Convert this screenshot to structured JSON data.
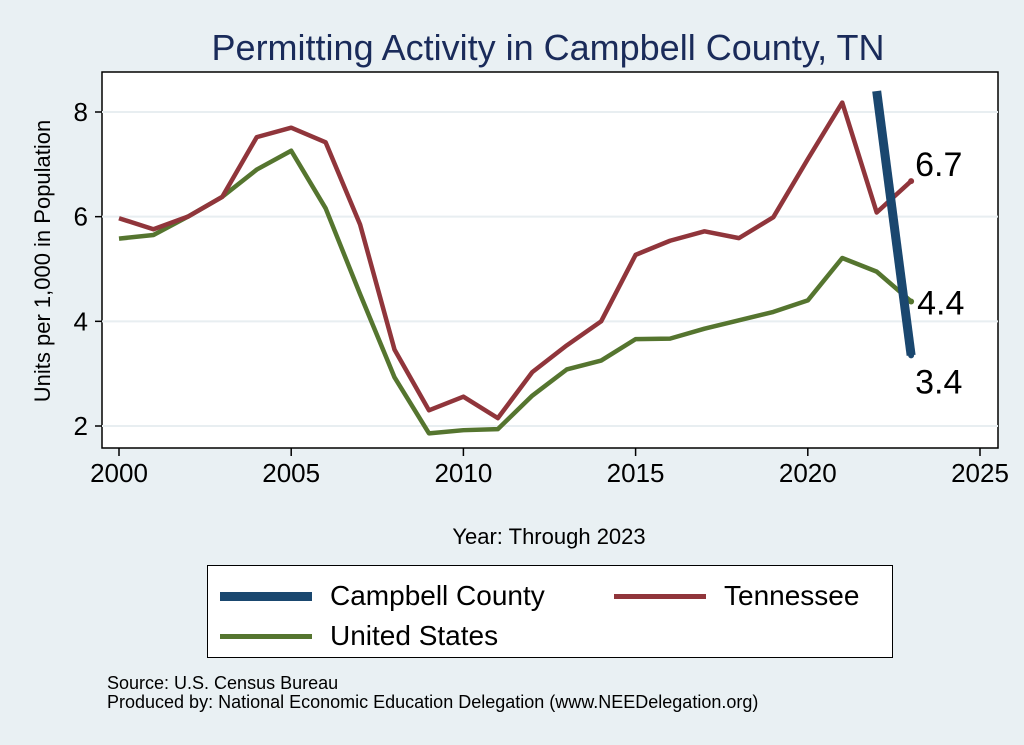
{
  "chart_data": {
    "type": "line",
    "title": "Permitting Activity in Campbell County, TN",
    "xlabel": "Year: Through 2023",
    "ylabel": "Units per 1,000 in Population",
    "xlim": [
      2000,
      2025
    ],
    "ylim": [
      1.7,
      8.8
    ],
    "xticks": [
      2000,
      2005,
      2010,
      2015,
      2020,
      2025
    ],
    "yticks": [
      2,
      4,
      6,
      8
    ],
    "grid": true,
    "legend_position": "bottom",
    "series": [
      {
        "name": "Campbell County",
        "color": "#1a476f",
        "x": [
          2022,
          2023
        ],
        "y": [
          8.4,
          3.35
        ],
        "end_label": "3.4"
      },
      {
        "name": "Tennessee",
        "color": "#90353b",
        "x": [
          2000,
          2001,
          2002,
          2003,
          2004,
          2005,
          2006,
          2007,
          2008,
          2009,
          2010,
          2011,
          2012,
          2013,
          2014,
          2015,
          2016,
          2017,
          2018,
          2019,
          2020,
          2021,
          2022,
          2023
        ],
        "y": [
          5.97,
          5.76,
          6.0,
          6.38,
          7.52,
          7.7,
          7.42,
          5.85,
          3.46,
          2.3,
          2.56,
          2.15,
          3.03,
          3.54,
          4.0,
          5.27,
          5.54,
          5.72,
          5.59,
          5.99,
          7.1,
          8.18,
          6.08,
          6.68
        ],
        "end_label": "6.7"
      },
      {
        "name": "United States",
        "color": "#55752f",
        "x": [
          2000,
          2001,
          2002,
          2003,
          2004,
          2005,
          2006,
          2007,
          2008,
          2009,
          2010,
          2011,
          2012,
          2013,
          2014,
          2015,
          2016,
          2017,
          2018,
          2019,
          2020,
          2021,
          2022,
          2023
        ],
        "y": [
          5.58,
          5.65,
          6.0,
          6.38,
          6.9,
          7.26,
          6.16,
          4.52,
          2.93,
          1.86,
          1.92,
          1.94,
          2.58,
          3.08,
          3.25,
          3.66,
          3.67,
          3.86,
          4.02,
          4.18,
          4.4,
          5.21,
          4.95,
          4.38
        ],
        "end_label": "4.4"
      }
    ]
  },
  "legend": {
    "items": [
      "Campbell County",
      "Tennessee",
      "United States"
    ]
  },
  "footer": {
    "source": "Source: U.S. Census Bureau",
    "produced_by": "Produced by: National Economic Education Delegation (www.NEEDelegation.org)"
  }
}
